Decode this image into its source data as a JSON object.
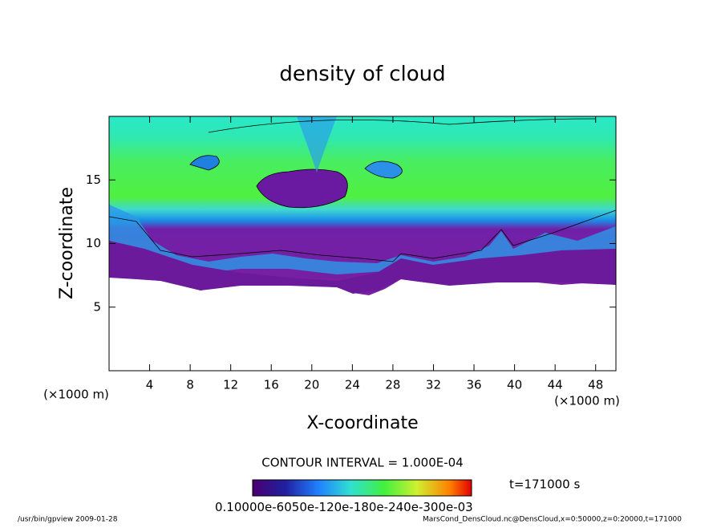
{
  "chart_data": {
    "type": "contour",
    "title": "density of cloud",
    "x_label": "X-coordinate",
    "y_label": "Z-coordinate",
    "x_unit_label": "(×1000 m)",
    "y_unit_label": "(×1000 m)",
    "xlim": [
      0,
      50
    ],
    "xticks": [
      4,
      8,
      12,
      16,
      20,
      24,
      28,
      32,
      36,
      40,
      44,
      48
    ],
    "ylim": [
      0,
      20
    ],
    "yticks": [
      5,
      10,
      15
    ],
    "contour_interval": "CONTOUR INTERVAL = 1.000E-04",
    "time_label": "t=171000 s",
    "colorbar_labels": [
      "0.1000",
      "0e-6",
      "05",
      "0e-1",
      "2",
      "0e-1",
      "8",
      "0e-2",
      "4",
      "0e-3",
      "0",
      "0e-03"
    ],
    "footer_left": "/usr/bin/gpview  2009-01-28",
    "footer_right": "MarsCond_DensCloud.nc@DensCloud,x=0:50000,z=0:20000,t=171000"
  }
}
